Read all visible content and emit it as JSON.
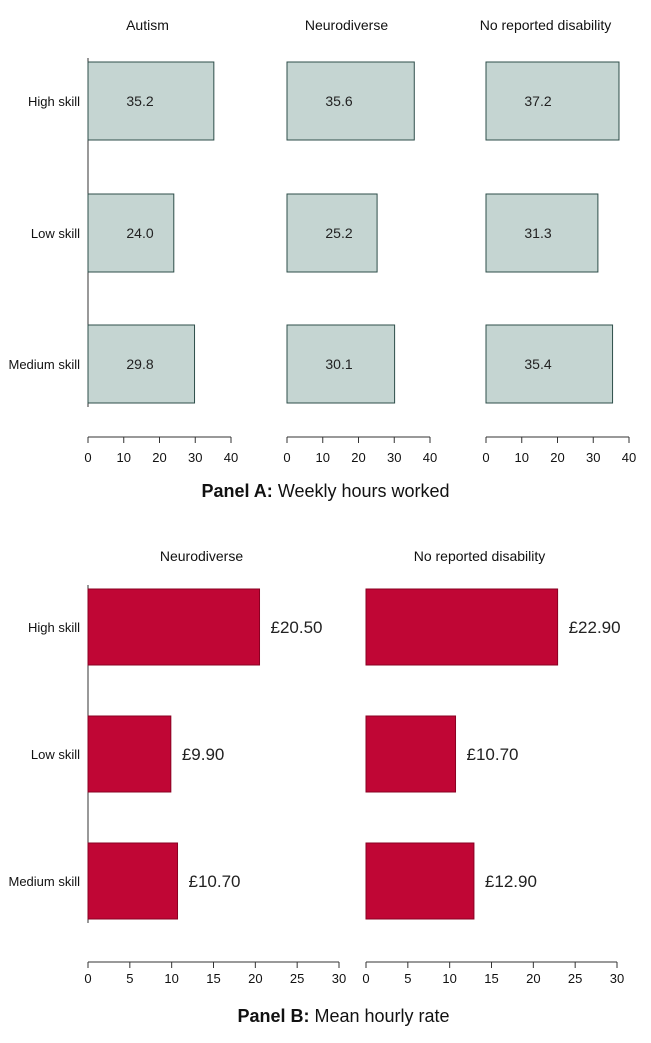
{
  "chart_data": [
    {
      "type": "bar",
      "orientation": "horizontal",
      "caption": {
        "bold": "Panel A:",
        "text": "Weekly hours worked"
      },
      "categories": [
        "High skill",
        "Low skill",
        "Medium skill"
      ],
      "series": [
        {
          "name": "Autism",
          "values": [
            35.2,
            24.0,
            29.8
          ],
          "labels": [
            "35.2",
            "24.0",
            "29.8"
          ]
        },
        {
          "name": "Neurodiverse",
          "values": [
            35.6,
            25.2,
            30.1
          ],
          "labels": [
            "35.6",
            "25.2",
            "30.1"
          ]
        },
        {
          "name": "No reported disability",
          "values": [
            37.2,
            31.3,
            35.4
          ],
          "labels": [
            "37.2",
            "31.3",
            "35.4"
          ]
        }
      ],
      "xlim": [
        0,
        40
      ],
      "xticks": [
        0,
        10,
        20,
        30,
        40
      ],
      "bar_color": "#c5d5d2",
      "bar_border": "#2e4e4a",
      "grid": false,
      "facet_titles_position": "top"
    },
    {
      "type": "bar",
      "orientation": "horizontal",
      "caption": {
        "bold": "Panel B:",
        "text": "Mean hourly rate"
      },
      "categories": [
        "High skill",
        "Low skill",
        "Medium skill"
      ],
      "series": [
        {
          "name": "Neurodiverse",
          "values": [
            20.5,
            9.9,
            10.7
          ],
          "labels": [
            "£20.50",
            "£9.90",
            "£10.70"
          ]
        },
        {
          "name": "No reported disability",
          "values": [
            22.9,
            10.7,
            12.9
          ],
          "labels": [
            "£22.90",
            "£10.70",
            "£12.90"
          ]
        }
      ],
      "xlim": [
        0,
        30
      ],
      "xticks": [
        0,
        5,
        10,
        15,
        20,
        25,
        30
      ],
      "bar_color": "#c00635",
      "bar_border": "#8a0022",
      "grid": false,
      "facet_titles_position": "top"
    }
  ]
}
